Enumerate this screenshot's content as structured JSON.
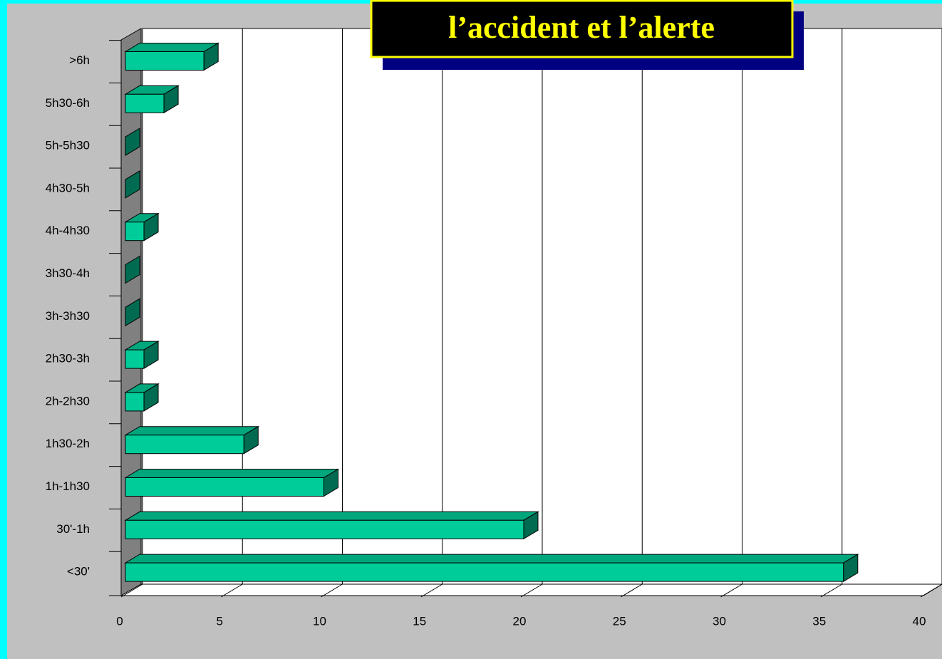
{
  "chart_data": {
    "type": "bar3d_horizontal",
    "title": "l’accident et  l’alerte",
    "categories": [
      "<30'",
      "30'-1h",
      "1h-1h30",
      "1h30-2h",
      "2h-2h30",
      "2h30-3h",
      "3h-3h30",
      "3h30-4h",
      "4h-4h30",
      "4h30-5h",
      "5h-5h30",
      "5h30-6h",
      ">6h"
    ],
    "values": [
      36,
      20,
      10,
      6,
      1,
      1,
      0,
      0,
      1,
      0,
      0,
      2,
      4
    ],
    "color": "#00cc99",
    "xlim": [
      0,
      40
    ],
    "xticks": [
      0,
      5,
      10,
      15,
      20,
      25,
      30,
      35,
      40
    ],
    "grid": true
  }
}
